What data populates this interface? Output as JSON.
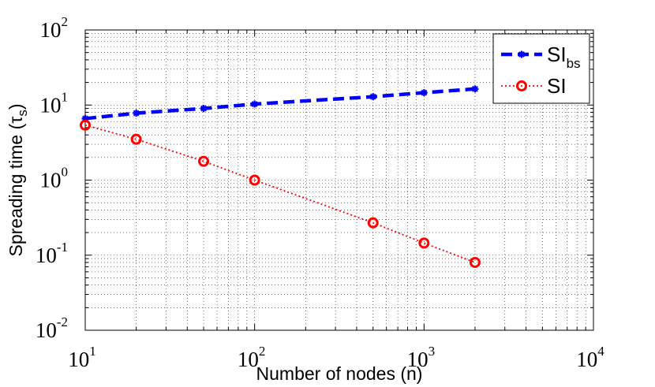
{
  "chart_data": {
    "type": "line",
    "xlabel": "Number of nodes (n)",
    "ylabel_main": "Spreading time (τ",
    "ylabel_sub": "s",
    "ylabel_close": ")",
    "x_scale": "log",
    "y_scale": "log",
    "xlim": [
      10,
      10000
    ],
    "ylim": [
      0.01,
      100
    ],
    "grid": true,
    "legend_position": "top-right",
    "x_ticks": [
      {
        "value": 10,
        "base": "10",
        "exp": "1"
      },
      {
        "value": 100,
        "base": "10",
        "exp": "2"
      },
      {
        "value": 1000,
        "base": "10",
        "exp": "3"
      },
      {
        "value": 10000,
        "base": "10",
        "exp": "4"
      }
    ],
    "y_ticks": [
      {
        "value": 0.01,
        "base": "10",
        "exp": "-2"
      },
      {
        "value": 0.1,
        "base": "10",
        "exp": "-1"
      },
      {
        "value": 1,
        "base": "10",
        "exp": "0"
      },
      {
        "value": 10,
        "base": "10",
        "exp": "1"
      },
      {
        "value": 100,
        "base": "10",
        "exp": "2"
      }
    ],
    "series": [
      {
        "name": "SI",
        "name_sub": "bs",
        "color": "#0000ff",
        "line_style": "dashed",
        "marker": "asterisk",
        "x": [
          10,
          20,
          50,
          100,
          500,
          1000,
          2000
        ],
        "y": [
          6.6,
          7.8,
          9.0,
          10.3,
          12.9,
          14.6,
          16.4
        ]
      },
      {
        "name": "SI",
        "name_sub": "",
        "color": "#ff0000",
        "line_style": "dotted",
        "marker": "circle",
        "x": [
          10,
          20,
          50,
          100,
          500,
          1000,
          2000
        ],
        "y": [
          5.4,
          3.5,
          1.78,
          1.0,
          0.27,
          0.145,
          0.08
        ]
      }
    ]
  }
}
